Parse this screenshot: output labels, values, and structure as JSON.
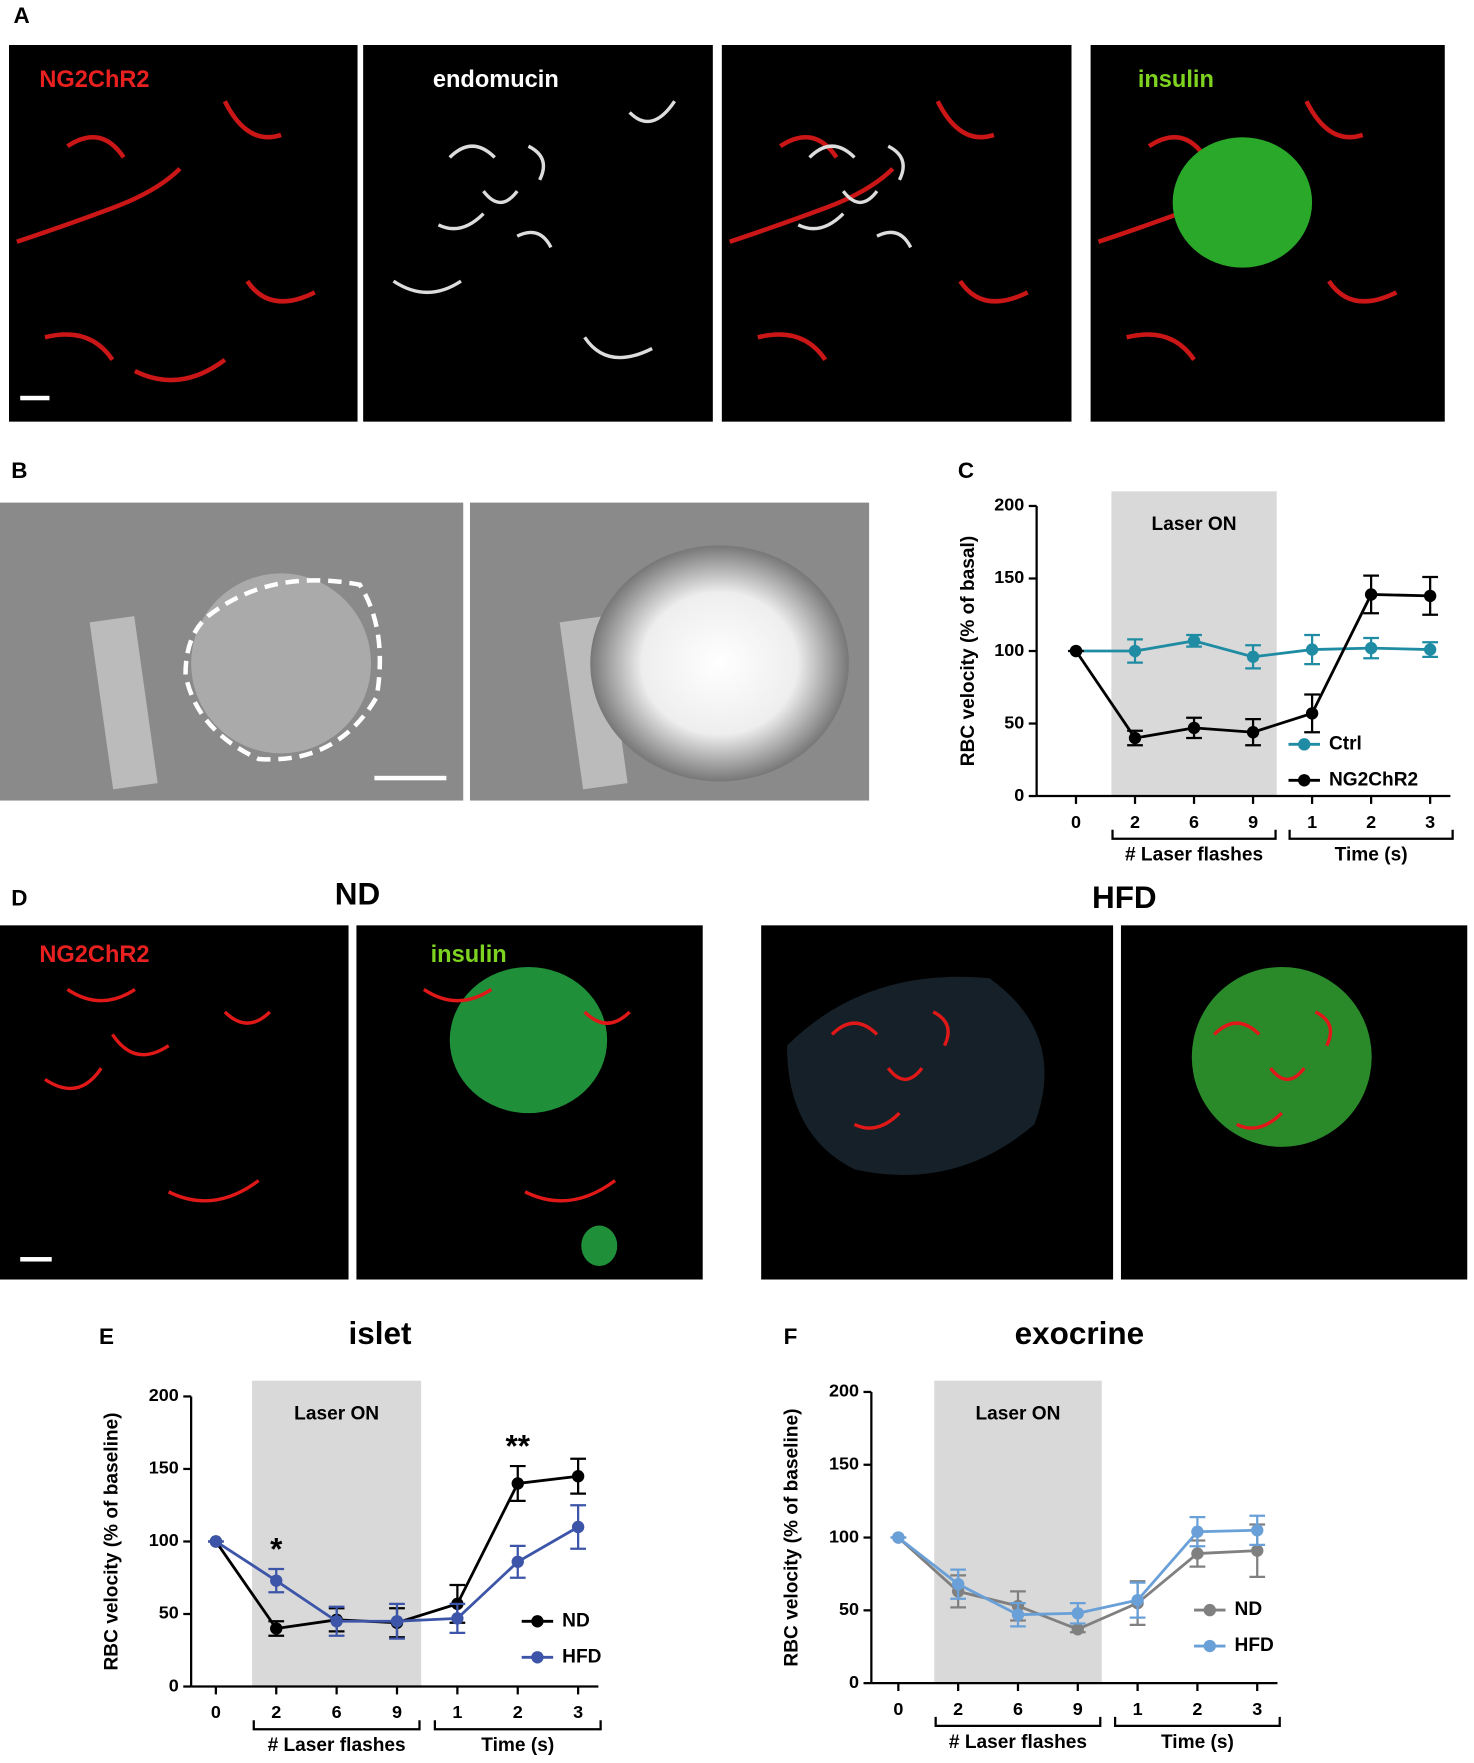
{
  "panel_letters": [
    "A",
    "B",
    "C",
    "D",
    "E",
    "F"
  ],
  "image_labels": [
    "NG2ChR2",
    "endomucin",
    "insulin",
    "NG2ChR2",
    "insulin"
  ],
  "image_headings": [
    "ND",
    "HFD"
  ],
  "chart_data": [
    {
      "type": "line",
      "ylabel": "RBC velocity (% of basal)",
      "shade_label": "Laser ON",
      "categories": [
        "0",
        "2",
        "6",
        "9",
        "1",
        "2",
        "3"
      ],
      "x_groups": [
        "# Laser flashes",
        "Time (s)"
      ],
      "ylim": [
        0,
        200
      ],
      "yticks": [
        0,
        50,
        100,
        150,
        200
      ],
      "series": [
        {
          "name": "Ctrl",
          "color": "#1f8ca3",
          "values": [
            100,
            100,
            107,
            96,
            101,
            102,
            101
          ],
          "errors": [
            0,
            8,
            4,
            8,
            10,
            7,
            5
          ]
        },
        {
          "name": "NG2ChR2",
          "color": "#000000",
          "values": [
            100,
            40,
            47,
            44,
            57,
            139,
            138
          ],
          "errors": [
            0,
            5,
            7,
            9,
            13,
            13,
            13
          ]
        }
      ]
    },
    {
      "type": "line",
      "title": "islet",
      "ylabel": "RBC velocity (% of baseline)",
      "shade_label": "Laser ON",
      "categories": [
        "0",
        "2",
        "6",
        "9",
        "1",
        "2",
        "3"
      ],
      "x_groups": [
        "# Laser flashes",
        "Time (s)"
      ],
      "ylim": [
        0,
        200
      ],
      "yticks": [
        0,
        50,
        100,
        150,
        200
      ],
      "annotations": [
        "*",
        "**"
      ],
      "series": [
        {
          "name": "ND",
          "color": "#000000",
          "values": [
            100,
            40,
            46,
            44,
            57,
            140,
            145
          ],
          "errors": [
            0,
            5,
            8,
            10,
            13,
            12,
            12
          ]
        },
        {
          "name": "HFD",
          "color": "#3d55a8",
          "values": [
            100,
            73,
            45,
            45,
            47,
            86,
            110
          ],
          "errors": [
            0,
            8,
            10,
            12,
            10,
            11,
            15
          ]
        }
      ]
    },
    {
      "type": "line",
      "title": "exocrine",
      "ylabel": "RBC velocity (% of baseline)",
      "shade_label": "Laser ON",
      "categories": [
        "0",
        "2",
        "6",
        "9",
        "1",
        "2",
        "3"
      ],
      "x_groups": [
        "# Laser flashes",
        "Time (s)"
      ],
      "ylim": [
        0,
        200
      ],
      "yticks": [
        0,
        50,
        100,
        150,
        200
      ],
      "series": [
        {
          "name": "ND",
          "color": "#808080",
          "values": [
            100,
            63,
            53,
            37,
            55,
            89,
            91
          ],
          "errors": [
            0,
            11,
            10,
            2,
            15,
            9,
            18
          ]
        },
        {
          "name": "HFD",
          "color": "#6aa0d8",
          "values": [
            100,
            68,
            47,
            48,
            57,
            104,
            105
          ],
          "errors": [
            0,
            10,
            8,
            7,
            12,
            10,
            10
          ]
        }
      ]
    }
  ]
}
